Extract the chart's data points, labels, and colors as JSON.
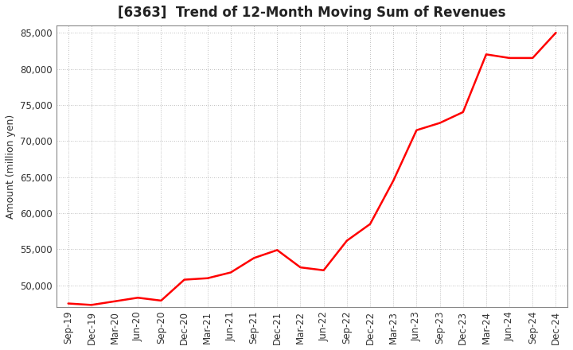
{
  "title": "[6363]  Trend of 12-Month Moving Sum of Revenues",
  "ylabel": "Amount (million yen)",
  "line_color": "#FF0000",
  "background_color": "#FFFFFF",
  "grid_color": "#888888",
  "ylim": [
    47000,
    86000
  ],
  "yticks": [
    50000,
    55000,
    60000,
    65000,
    70000,
    75000,
    80000,
    85000
  ],
  "x_labels": [
    "Sep-19",
    "Dec-19",
    "Mar-20",
    "Jun-20",
    "Sep-20",
    "Dec-20",
    "Mar-21",
    "Jun-21",
    "Sep-21",
    "Dec-21",
    "Mar-22",
    "Jun-22",
    "Sep-22",
    "Dec-22",
    "Mar-23",
    "Jun-23",
    "Sep-23",
    "Dec-23",
    "Mar-24",
    "Jun-24",
    "Sep-24",
    "Dec-24"
  ],
  "values": [
    47500,
    47300,
    47800,
    48300,
    47900,
    50800,
    51000,
    51800,
    53800,
    54900,
    52500,
    52100,
    56200,
    58500,
    64500,
    71500,
    72500,
    74000,
    82000,
    81500,
    81500,
    85000
  ],
  "title_fontsize": 12,
  "ylabel_fontsize": 9,
  "tick_fontsize": 8.5,
  "line_width": 1.8
}
